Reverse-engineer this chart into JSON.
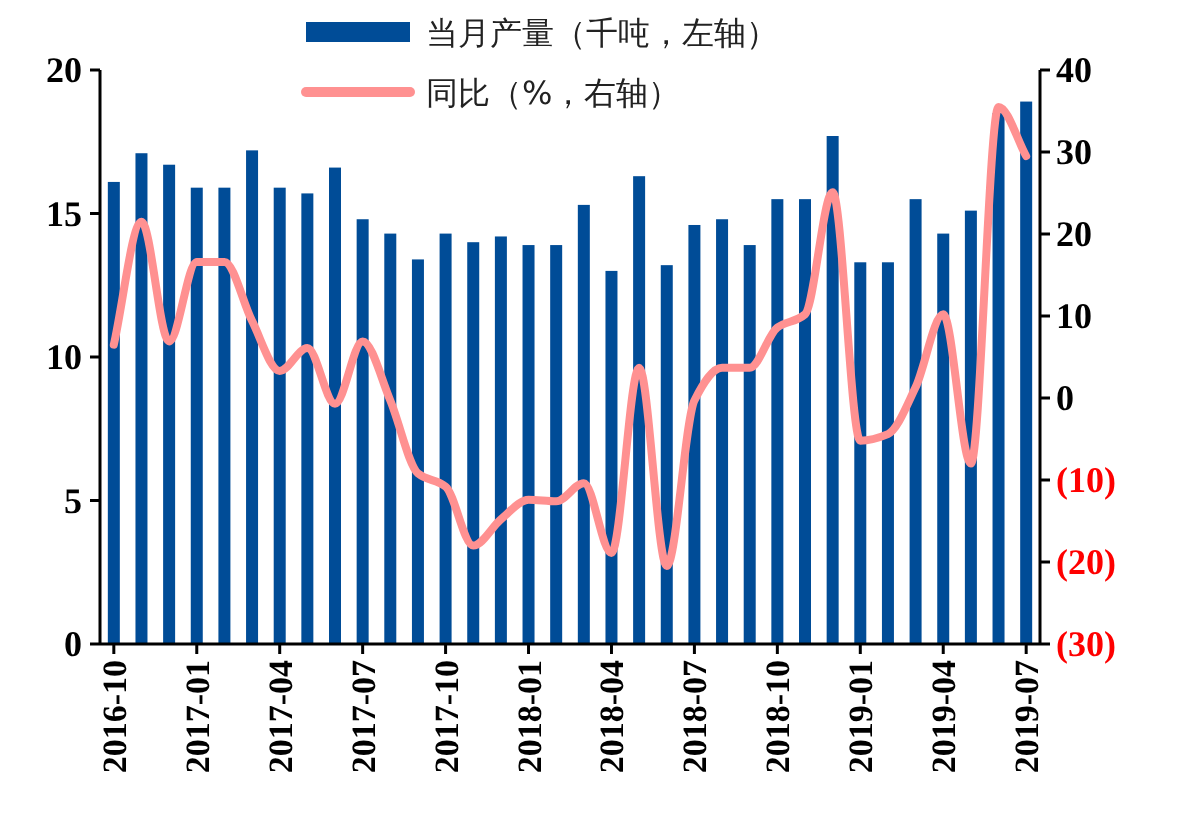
{
  "chart_data": {
    "type": "bar",
    "categories": [
      "2016-10",
      null,
      null,
      "2017-01",
      null,
      null,
      "2017-04",
      null,
      null,
      "2017-07",
      null,
      null,
      "2017-10",
      null,
      null,
      "2018-01",
      null,
      null,
      "2018-04",
      null,
      null,
      "2018-07",
      null,
      null,
      "2018-10",
      null,
      null,
      "2019-01",
      null,
      null,
      "2019-04",
      null,
      null,
      "2019-07"
    ],
    "series": [
      {
        "name": "当月产量（千吨，左轴）",
        "color": "#004c97",
        "values": [
          16.1,
          17.1,
          16.7,
          15.9,
          15.9,
          17.2,
          15.9,
          15.7,
          16.6,
          14.8,
          14.3,
          13.4,
          14.3,
          14.0,
          14.2,
          13.9,
          13.9,
          15.3,
          13.0,
          16.3,
          13.2,
          14.6,
          14.8,
          13.9,
          15.5,
          15.5,
          17.7,
          13.3,
          13.3,
          15.5,
          14.3,
          15.1,
          18.5,
          18.9
        ]
      },
      {
        "name": "同比（%，右轴）",
        "type": "line",
        "axis": "y2",
        "color": "#ff9191",
        "values": [
          6.5,
          21.5,
          6.9,
          16.6,
          16.6,
          9.4,
          3.3,
          6.1,
          -0.7,
          6.9,
          -0.3,
          -9.2,
          -10.8,
          -18.0,
          -14.8,
          -12.4,
          -12.6,
          -10.4,
          -18.9,
          3.7,
          -20.5,
          -0.3,
          3.7,
          3.7,
          8.6,
          10.2,
          25.1,
          -5.2,
          -4.4,
          1.3,
          10.2,
          -8.0,
          35.5,
          29.5
        ]
      }
    ],
    "ylim": [
      0,
      20
    ],
    "yticks": [
      0,
      5,
      10,
      15,
      20
    ],
    "y2lim": [
      -30,
      40
    ],
    "y2ticks": [
      {
        "value": -30,
        "label": "(30)"
      },
      {
        "value": -20,
        "label": "(20)"
      },
      {
        "value": -10,
        "label": "(10)"
      },
      0,
      10,
      20,
      30,
      40
    ],
    "grid": false,
    "legend": "top"
  }
}
